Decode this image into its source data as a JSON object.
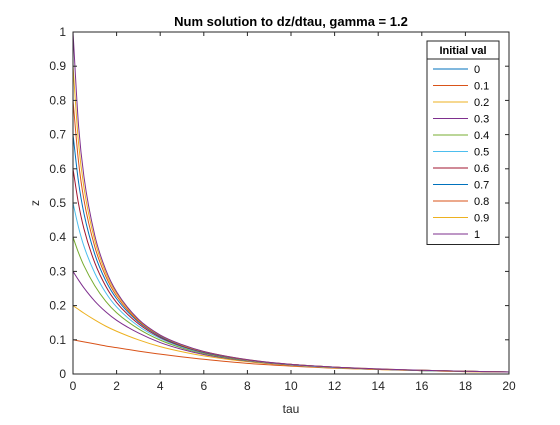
{
  "chart_data": {
    "type": "line",
    "title": "Num solution to dz/dtau, gamma = 1.2",
    "xlabel": "tau",
    "ylabel": "z",
    "xlim": [
      0,
      20
    ],
    "ylim": [
      0,
      1
    ],
    "xticks": [
      0,
      2,
      4,
      6,
      8,
      10,
      12,
      14,
      16,
      18,
      20
    ],
    "yticks": [
      0,
      0.1,
      0.2,
      0.3,
      0.4,
      0.5,
      0.6,
      0.7,
      0.8,
      0.9,
      1
    ],
    "grid": false,
    "legend": {
      "title": "Initial val",
      "placement": "top-right"
    },
    "x": [
      0,
      0.25,
      0.5,
      1,
      1.5,
      2,
      3,
      4,
      5,
      6,
      8,
      10,
      12,
      14,
      16,
      18,
      20
    ],
    "series": [
      {
        "name": "0",
        "color": "#0072BD",
        "values": [
          0,
          0,
          0,
          0,
          0,
          0,
          0,
          0,
          0,
          0,
          0,
          0,
          0,
          0,
          0,
          0,
          0
        ]
      },
      {
        "name": "0.1",
        "color": "#D95319",
        "values": [
          0.1,
          0.097,
          0.094,
          0.088,
          0.082,
          0.077,
          0.067,
          0.058,
          0.05,
          0.043,
          0.031,
          0.023,
          0.017,
          0.013,
          0.01,
          0.007,
          0.006
        ]
      },
      {
        "name": "0.2",
        "color": "#EDB120",
        "values": [
          0.2,
          0.189,
          0.178,
          0.158,
          0.14,
          0.125,
          0.1,
          0.08,
          0.065,
          0.053,
          0.036,
          0.025,
          0.018,
          0.013,
          0.01,
          0.007,
          0.006
        ]
      },
      {
        "name": "0.3",
        "color": "#7E2F8E",
        "values": [
          0.3,
          0.275,
          0.252,
          0.213,
          0.182,
          0.157,
          0.12,
          0.092,
          0.072,
          0.057,
          0.038,
          0.026,
          0.019,
          0.014,
          0.01,
          0.008,
          0.006
        ]
      },
      {
        "name": "0.4",
        "color": "#77AC30",
        "values": [
          0.4,
          0.355,
          0.317,
          0.258,
          0.213,
          0.179,
          0.132,
          0.099,
          0.076,
          0.06,
          0.039,
          0.027,
          0.019,
          0.014,
          0.01,
          0.008,
          0.006
        ]
      },
      {
        "name": "0.5",
        "color": "#4DBEEE",
        "values": [
          0.5,
          0.43,
          0.374,
          0.295,
          0.238,
          0.196,
          0.14,
          0.104,
          0.079,
          0.062,
          0.04,
          0.027,
          0.019,
          0.014,
          0.01,
          0.008,
          0.006
        ]
      },
      {
        "name": "0.6",
        "color": "#A2142F",
        "values": [
          0.6,
          0.499,
          0.425,
          0.325,
          0.257,
          0.209,
          0.147,
          0.107,
          0.081,
          0.063,
          0.041,
          0.028,
          0.02,
          0.014,
          0.011,
          0.008,
          0.006
        ]
      },
      {
        "name": "0.7",
        "color": "#0072BD",
        "values": [
          0.7,
          0.563,
          0.47,
          0.35,
          0.273,
          0.22,
          0.152,
          0.11,
          0.083,
          0.064,
          0.041,
          0.028,
          0.02,
          0.014,
          0.011,
          0.008,
          0.006
        ]
      },
      {
        "name": "0.8",
        "color": "#D95319",
        "values": [
          0.8,
          0.623,
          0.51,
          0.372,
          0.286,
          0.228,
          0.155,
          0.112,
          0.084,
          0.065,
          0.041,
          0.028,
          0.02,
          0.014,
          0.011,
          0.008,
          0.006
        ]
      },
      {
        "name": "0.9",
        "color": "#EDB120",
        "values": [
          0.9,
          0.678,
          0.546,
          0.39,
          0.296,
          0.235,
          0.158,
          0.113,
          0.085,
          0.066,
          0.042,
          0.028,
          0.02,
          0.015,
          0.011,
          0.008,
          0.006
        ]
      },
      {
        "name": "1",
        "color": "#7E2F8E",
        "values": [
          1,
          0.73,
          0.578,
          0.405,
          0.305,
          0.24,
          0.16,
          0.114,
          0.086,
          0.066,
          0.042,
          0.028,
          0.02,
          0.015,
          0.011,
          0.008,
          0.006
        ]
      }
    ]
  }
}
